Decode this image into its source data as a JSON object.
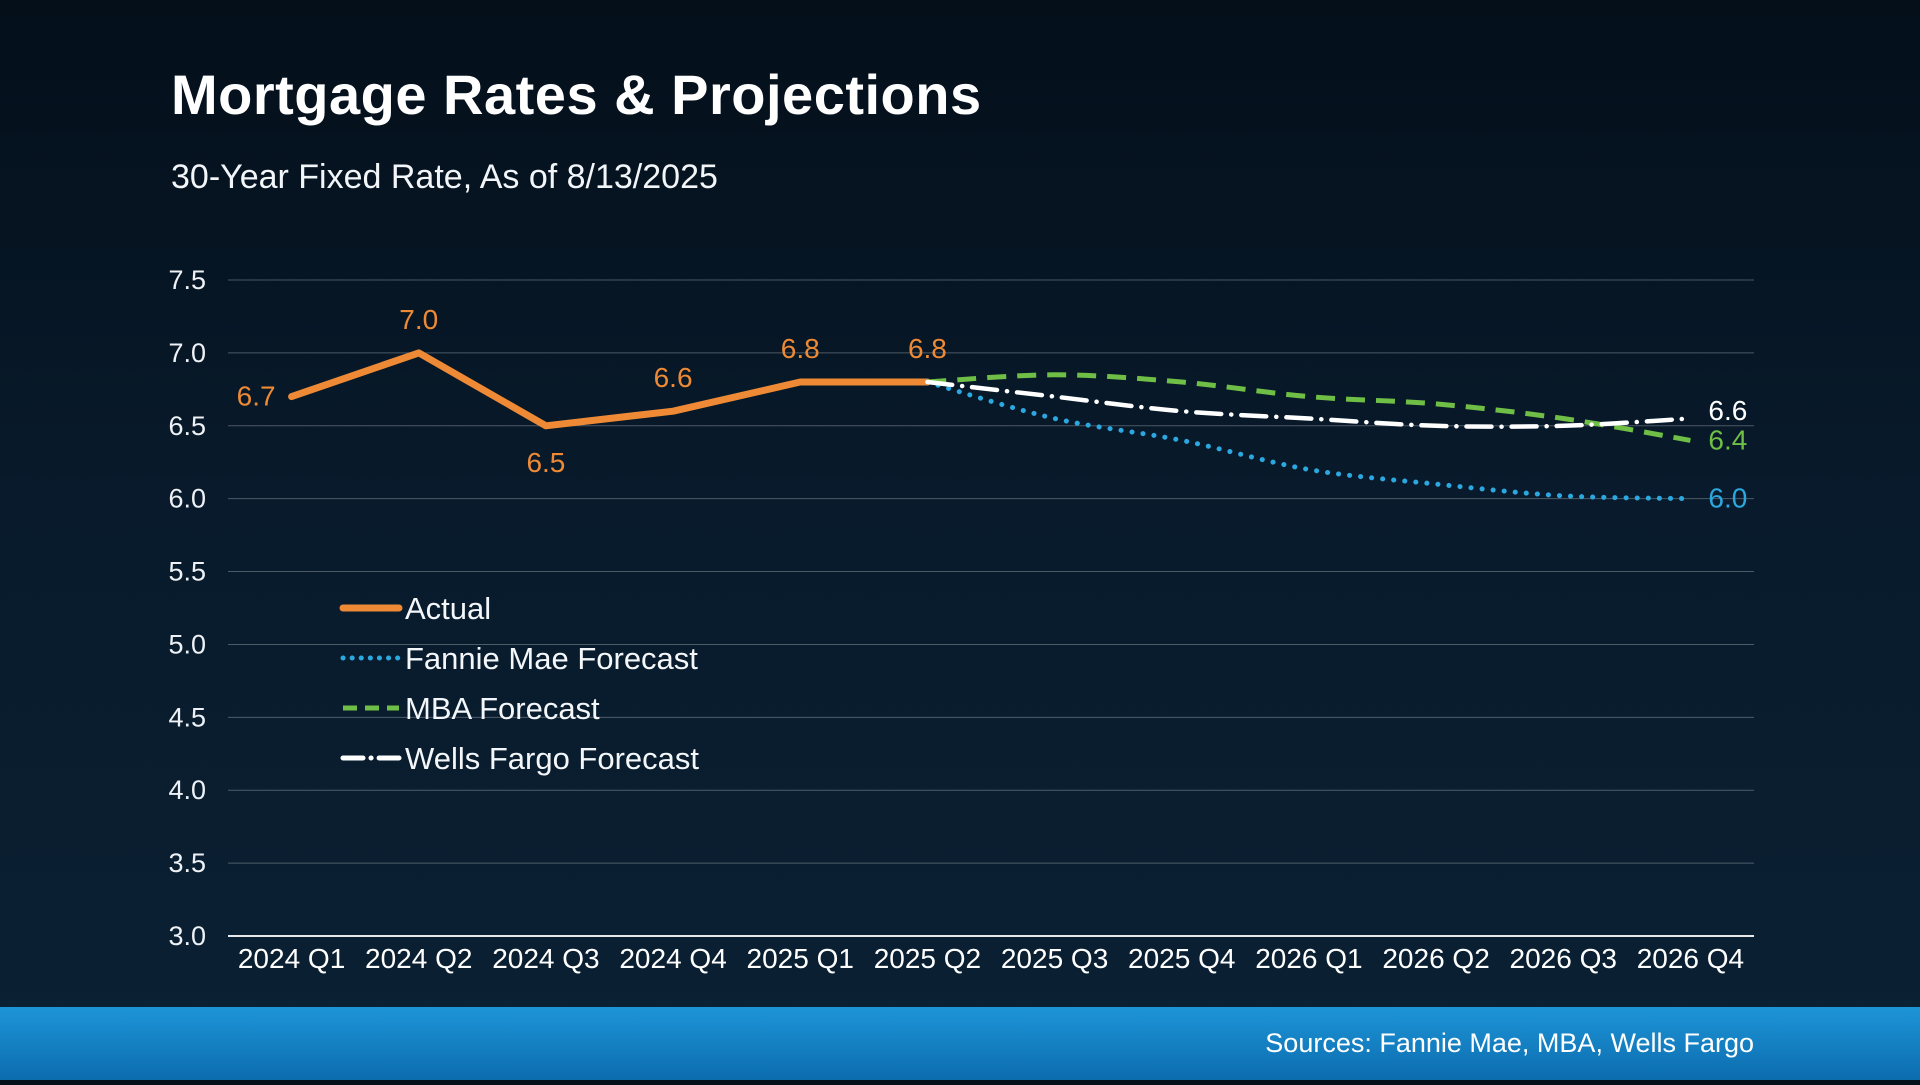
{
  "header": {
    "title": "Mortgage Rates & Projections",
    "subtitle": "30-Year Fixed Rate, As of 8/13/2025"
  },
  "footer": {
    "sources": "Sources: Fannie Mae, MBA, Wells Fargo"
  },
  "colors": {
    "background": "#081a2b",
    "actual": "#EE8A35",
    "fannie_mae": "#2CA8E0",
    "mba": "#6FBE45",
    "wells_fargo": "#FFFFFF",
    "gridline": "rgba(255,255,255,0.28)",
    "axis_line": "rgba(255,255,255,0.9)",
    "footer_bar_top": "#1d95d8",
    "footer_bar_bottom": "#0c6cae"
  },
  "chart_data": {
    "type": "line",
    "title": "Mortgage Rates & Projections",
    "subtitle": "30-Year Fixed Rate, As of 8/13/2025",
    "categories": [
      "2024 Q1",
      "2024 Q2",
      "2024 Q3",
      "2024 Q4",
      "2025 Q1",
      "2025 Q2",
      "2025 Q3",
      "2025 Q4",
      "2026 Q1",
      "2026 Q2",
      "2026 Q3",
      "2026 Q4"
    ],
    "ylim": [
      3.0,
      7.5
    ],
    "ytick_step": 0.5,
    "grid": true,
    "legend_position": "inside-left",
    "series": [
      {
        "name": "Actual",
        "color": "#EE8A35",
        "style": "solid",
        "smooth": false,
        "values": [
          6.7,
          7.0,
          6.5,
          6.6,
          6.8,
          6.8,
          null,
          null,
          null,
          null,
          null,
          null
        ],
        "point_labels": [
          {
            "text": "6.7",
            "pos": "left"
          },
          {
            "text": "7.0",
            "pos": "above"
          },
          {
            "text": "6.5",
            "pos": "below"
          },
          {
            "text": "6.6",
            "pos": "above"
          },
          {
            "text": "6.8",
            "pos": "above"
          },
          {
            "text": "6.8",
            "pos": "above"
          }
        ]
      },
      {
        "name": "Fannie Mae Forecast",
        "color": "#2CA8E0",
        "style": "dotted",
        "smooth": true,
        "values": [
          null,
          null,
          null,
          null,
          null,
          6.8,
          6.55,
          6.4,
          6.2,
          6.1,
          6.02,
          6.0
        ],
        "end_label": "6.0"
      },
      {
        "name": "MBA Forecast",
        "color": "#6FBE45",
        "style": "dashed",
        "smooth": true,
        "values": [
          null,
          null,
          null,
          null,
          null,
          6.8,
          6.85,
          6.8,
          6.7,
          6.65,
          6.55,
          6.4
        ],
        "end_label": "6.4"
      },
      {
        "name": "Wells Fargo Forecast",
        "color": "#FFFFFF",
        "style": "dashdot",
        "smooth": true,
        "values": [
          null,
          null,
          null,
          null,
          null,
          6.8,
          6.7,
          6.6,
          6.55,
          6.5,
          6.5,
          6.55
        ],
        "end_label": "6.6"
      }
    ]
  }
}
